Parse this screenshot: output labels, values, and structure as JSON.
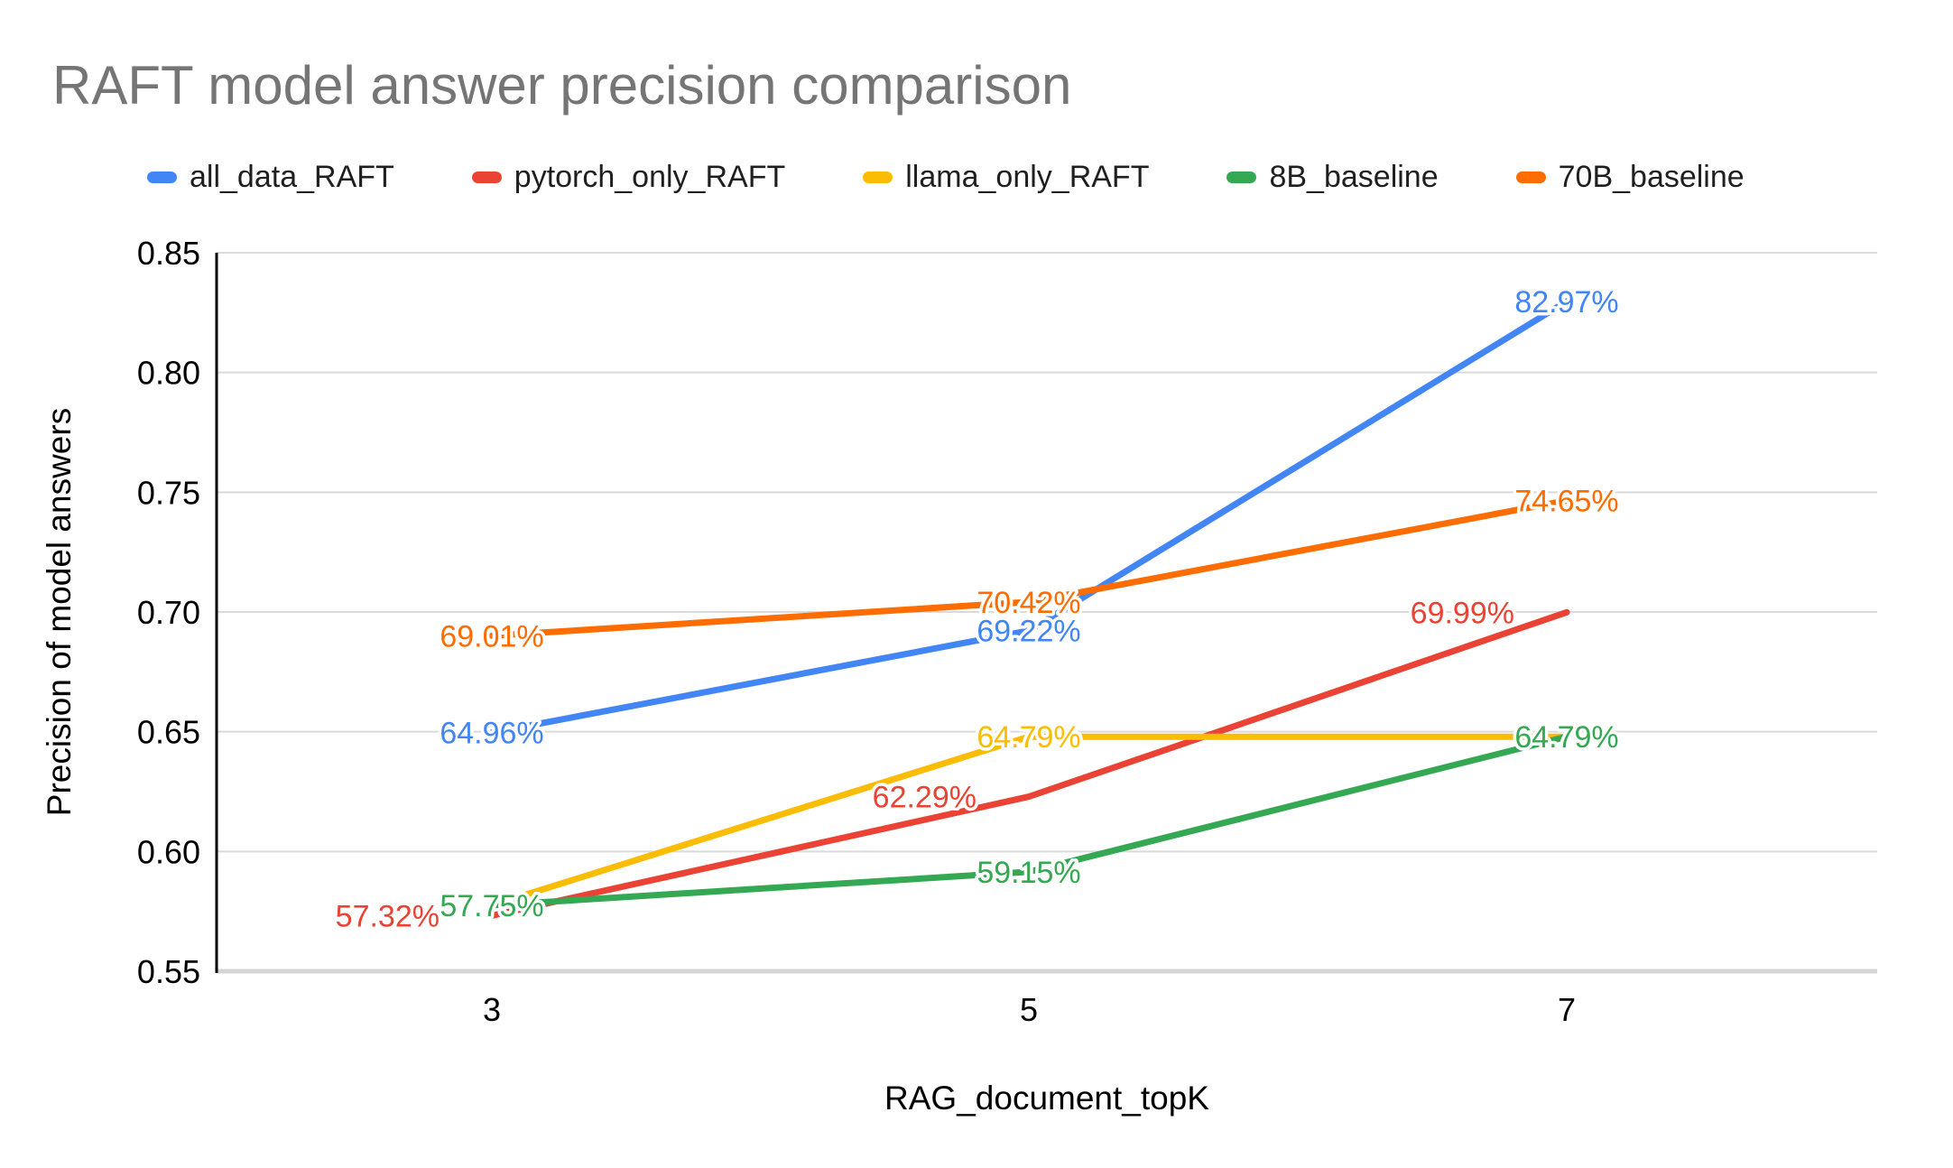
{
  "page": {
    "background": "#ffffff"
  },
  "chart_data": {
    "type": "line",
    "title": "RAFT model answer precision comparison",
    "title_color": "#757575",
    "xlabel": "RAG_document_topK",
    "ylabel": "Precision of model answers",
    "categories": [
      "3",
      "5",
      "7"
    ],
    "ylim": [
      0.55,
      0.85
    ],
    "ytick_step": 0.05,
    "yticks": [
      "0.55",
      "0.60",
      "0.65",
      "0.70",
      "0.75",
      "0.80",
      "0.85"
    ],
    "grid": true,
    "legend_position": "top",
    "axis_color": "#000000",
    "gridline_color": "#dadada",
    "baseline_color": "#d5d5d5",
    "tick_label_color": "#000000",
    "series": [
      {
        "name": "all_data_RAFT",
        "color": "#4285F4",
        "values": [
          0.6496,
          0.6922,
          0.8297
        ],
        "point_labels": [
          "64.96%",
          "69.22%",
          "82.97%"
        ],
        "label_placement": "center"
      },
      {
        "name": "pytorch_only_RAFT",
        "color": "#EA4335",
        "values": [
          0.5732,
          0.6229,
          0.6999
        ],
        "point_labels": [
          "57.32%",
          "62.29%",
          "69.99%"
        ],
        "label_placement": "left"
      },
      {
        "name": "llama_only_RAFT",
        "color": "#FBBC04",
        "values": [
          0.5775,
          0.6479,
          0.6479
        ],
        "point_labels": [
          null,
          "64.79%",
          null
        ],
        "label_placement": "center"
      },
      {
        "name": "8B_baseline",
        "color": "#34A853",
        "values": [
          0.5775,
          0.5915,
          0.6479
        ],
        "point_labels": [
          "57.75%",
          "59.15%",
          "64.79%"
        ],
        "label_placement": "center"
      },
      {
        "name": "70B_baseline",
        "color": "#FF6D01",
        "values": [
          0.6901,
          0.7042,
          0.7465
        ],
        "point_labels": [
          "69.01%",
          "70.42%",
          "74.65%"
        ],
        "label_placement": "center"
      }
    ]
  }
}
